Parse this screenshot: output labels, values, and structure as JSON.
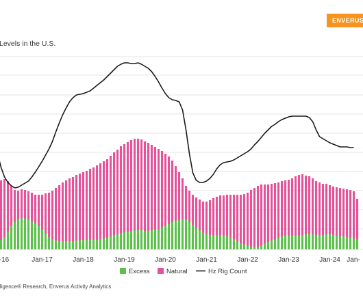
{
  "badge": {
    "label": "ENVERUS"
  },
  "title": "Levels in the U.S.",
  "source": "lligence® Research, Enverus Activity Analytics",
  "chart_data": {
    "type": "bar",
    "title": "Levels in the U.S.",
    "x_tick_labels": [
      "-16",
      "Jan-17",
      "Jan-18",
      "Jan-19",
      "Jan-20",
      "Jan-21",
      "Jan-22",
      "Jan-23",
      "Jan-24",
      "Jan-"
    ],
    "first_month": "2016-01",
    "stacking": "stacked",
    "series": [
      {
        "name": "Excess",
        "kind": "bar",
        "color": "#5cc04a",
        "values": [
          14,
          18,
          26,
          35,
          40,
          44,
          46,
          45,
          43,
          41,
          38,
          34,
          29,
          23,
          18,
          15,
          13,
          12,
          12,
          12,
          12,
          12,
          13,
          13,
          14,
          14,
          14,
          14,
          14,
          15,
          16,
          17,
          19,
          21,
          22,
          24,
          25,
          26,
          27,
          28,
          28,
          28,
          27,
          27,
          28,
          29,
          30,
          32,
          34,
          37,
          40,
          42,
          43,
          44,
          43,
          40,
          36,
          32,
          28,
          24,
          22,
          21,
          21,
          21,
          21,
          20,
          19,
          17,
          15,
          12,
          9,
          7,
          5,
          4,
          3,
          3,
          6,
          9,
          11,
          13,
          15,
          17,
          19,
          20,
          20,
          20,
          20,
          20,
          21,
          22,
          22,
          22,
          21,
          21,
          21,
          22,
          22,
          21,
          20,
          19,
          19,
          18,
          17,
          16,
          15
        ]
      },
      {
        "name": "Natural",
        "kind": "bar",
        "color": "#e6529a",
        "values": [
          87,
          85,
          74,
          58,
          47,
          42,
          42,
          42,
          42,
          42,
          42,
          46,
          51,
          59,
          65,
          71,
          77,
          82,
          86,
          89,
          92,
          94,
          96,
          98,
          99,
          101,
          104,
          106,
          109,
          111,
          113,
          115,
          118,
          121,
          124,
          127,
          129,
          131,
          133,
          134,
          134,
          133,
          131,
          129,
          125,
          121,
          117,
          112,
          106,
          99,
          90,
          80,
          70,
          60,
          50,
          46,
          44,
          44,
          45,
          46,
          48,
          51,
          54,
          56,
          58,
          59,
          61,
          63,
          65,
          68,
          71,
          74,
          78,
          83,
          87,
          90,
          89,
          86,
          84,
          83,
          82,
          81,
          81,
          81,
          82,
          84,
          87,
          89,
          89,
          86,
          85,
          82,
          79,
          77,
          75,
          74,
          72,
          71,
          71,
          71,
          70,
          70,
          70,
          69,
          59
        ]
      },
      {
        "name": "Hz Rig Count",
        "kind": "line",
        "color": "#1a1a1a",
        "values": [
          140,
          120,
          106,
          98,
          93,
          90,
          91,
          94,
          97,
          100,
          106,
          113,
          121,
          129,
          138,
          147,
          158,
          172,
          185,
          197,
          207,
          216,
          222,
          226,
          227,
          228,
          230,
          232,
          236,
          240,
          244,
          248,
          253,
          258,
          263,
          268,
          271,
          273,
          273,
          272,
          272,
          273,
          271,
          268,
          265,
          260,
          253,
          245,
          236,
          228,
          222,
          219,
          218,
          216,
          204,
          175,
          140,
          112,
          101,
          98,
          98,
          100,
          104,
          110,
          118,
          124,
          127,
          128,
          129,
          131,
          134,
          137,
          140,
          143,
          147,
          153,
          158,
          164,
          170,
          175,
          180,
          183,
          187,
          190,
          192,
          194,
          195,
          195,
          195,
          195,
          195,
          193,
          187,
          175,
          165,
          162,
          159,
          156,
          154,
          152,
          150,
          150,
          150,
          149,
          149
        ]
      }
    ]
  }
}
